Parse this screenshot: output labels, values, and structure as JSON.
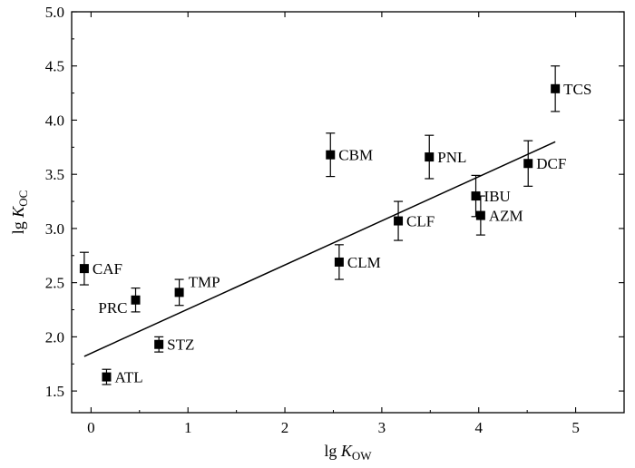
{
  "chart_data": {
    "type": "scatter",
    "xlabel": {
      "prefix": "lg ",
      "var": "K",
      "sub": "OW"
    },
    "ylabel": {
      "prefix": "lg ",
      "var": "K",
      "sub": "OC"
    },
    "xlim": [
      -0.2,
      5.5
    ],
    "ylim": [
      1.3,
      5.0
    ],
    "xticks": [
      0,
      1,
      2,
      3,
      4,
      5
    ],
    "xtick_labels": [
      "0",
      "1",
      "2",
      "3",
      "4",
      "5"
    ],
    "yticks": [
      1.5,
      2.0,
      2.5,
      3.0,
      3.5,
      4.0,
      4.5,
      5.0
    ],
    "ytick_labels": [
      "1.5",
      "2.0",
      "2.5",
      "3.0",
      "3.5",
      "4.0",
      "4.5",
      "5.0"
    ],
    "grid": false,
    "points": [
      {
        "label": "CAF",
        "x": -0.07,
        "y": 2.63,
        "err": 0.15,
        "side": "right"
      },
      {
        "label": "PRC",
        "x": 0.46,
        "y": 2.34,
        "err": 0.11,
        "side": "left"
      },
      {
        "label": "TMP",
        "x": 0.91,
        "y": 2.41,
        "err": 0.12,
        "side": "right-up"
      },
      {
        "label": "STZ",
        "x": 0.7,
        "y": 1.93,
        "err": 0.07,
        "side": "right"
      },
      {
        "label": "ATL",
        "x": 0.16,
        "y": 1.63,
        "err": 0.07,
        "side": "right"
      },
      {
        "label": "CLM",
        "x": 2.56,
        "y": 2.69,
        "err": 0.16,
        "side": "right"
      },
      {
        "label": "CBM",
        "x": 2.47,
        "y": 3.68,
        "err": 0.2,
        "side": "right"
      },
      {
        "label": "CLF",
        "x": 3.17,
        "y": 3.07,
        "err": 0.18,
        "side": "right"
      },
      {
        "label": "PNL",
        "x": 3.49,
        "y": 3.66,
        "err": 0.2,
        "side": "right"
      },
      {
        "label": "IBU",
        "x": 3.97,
        "y": 3.3,
        "err": 0.19,
        "side": "right"
      },
      {
        "label": "AZM",
        "x": 4.02,
        "y": 3.12,
        "err": 0.18,
        "side": "right"
      },
      {
        "label": "DCF",
        "x": 4.51,
        "y": 3.6,
        "err": 0.21,
        "side": "right"
      },
      {
        "label": "TCS",
        "x": 4.79,
        "y": 4.29,
        "err": 0.21,
        "side": "right"
      }
    ],
    "fit_line": {
      "x": [
        -0.07,
        4.79
      ],
      "y": [
        1.82,
        3.8
      ]
    }
  }
}
